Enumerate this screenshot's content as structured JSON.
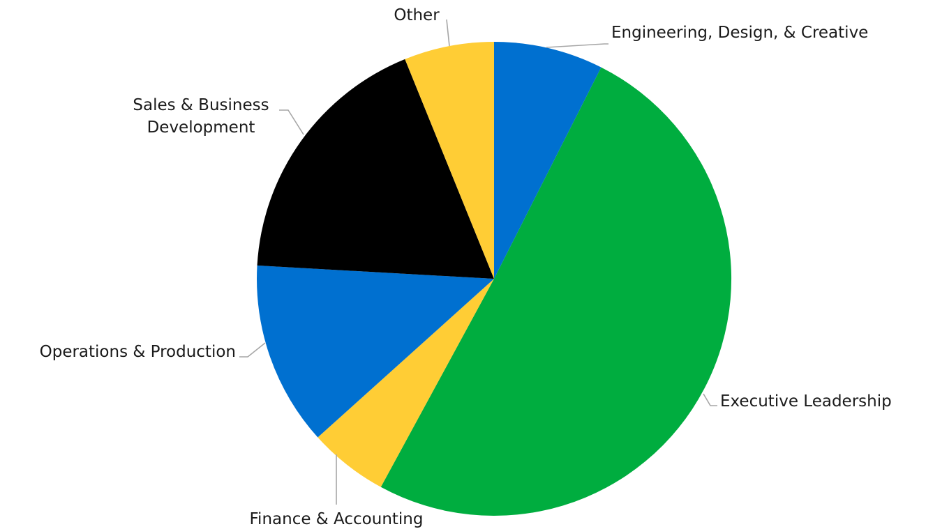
{
  "chart_data": {
    "type": "pie",
    "title": "",
    "start_angle_deg": 0,
    "direction": "clockwise",
    "slices": [
      {
        "label": "Engineering, Design, & Creative",
        "label_lines": [
          "Engineering, Design, & Creative"
        ],
        "value": 7.3,
        "color": "#0070d0"
      },
      {
        "label": "Executive Leadership",
        "label_lines": [
          "Executive Leadership"
        ],
        "value": 49.4,
        "color": "#00ad3f"
      },
      {
        "label": "Finance & Accounting",
        "label_lines": [
          "Finance & Accounting"
        ],
        "value": 5.3,
        "color": "#ffcd35"
      },
      {
        "label": "Operations & Production",
        "label_lines": [
          "Operations & Production"
        ],
        "value": 12.3,
        "color": "#0070d0"
      },
      {
        "label": "Sales & Business Development",
        "label_lines": [
          "Sales & Business",
          "Development"
        ],
        "value": 17.6,
        "color": "#000000"
      },
      {
        "label": "Other",
        "label_lines": [
          "Other"
        ],
        "value": 6.0,
        "color": "#ffcd35"
      }
    ]
  }
}
